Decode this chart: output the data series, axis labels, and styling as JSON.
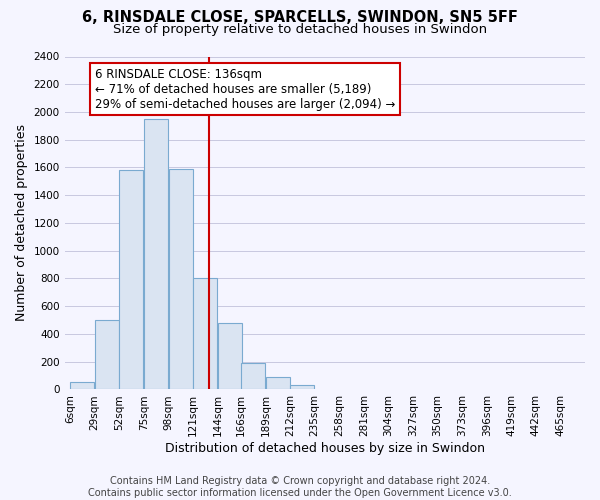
{
  "title": "6, RINSDALE CLOSE, SPARCELLS, SWINDON, SN5 5FF",
  "subtitle": "Size of property relative to detached houses in Swindon",
  "xlabel": "Distribution of detached houses by size in Swindon",
  "ylabel": "Number of detached properties",
  "bar_left_edges": [
    6,
    29,
    52,
    75,
    98,
    121,
    144,
    166,
    189,
    212,
    235,
    258,
    281,
    304,
    327,
    350,
    373,
    396,
    419,
    442
  ],
  "bar_heights": [
    55,
    500,
    1580,
    1950,
    1590,
    800,
    480,
    190,
    90,
    30,
    0,
    0,
    0,
    0,
    0,
    0,
    0,
    0,
    0,
    0
  ],
  "bin_width": 23,
  "bar_color": "#dae4f2",
  "bar_edge_color": "#7aaad0",
  "vline_x": 136,
  "vline_color": "#cc0000",
  "annotation_line1": "6 RINSDALE CLOSE: 136sqm",
  "annotation_line2": "← 71% of detached houses are smaller (5,189)",
  "annotation_line3": "29% of semi-detached houses are larger (2,094) →",
  "tick_labels": [
    "6sqm",
    "29sqm",
    "52sqm",
    "75sqm",
    "98sqm",
    "121sqm",
    "144sqm",
    "166sqm",
    "189sqm",
    "212sqm",
    "235sqm",
    "258sqm",
    "281sqm",
    "304sqm",
    "327sqm",
    "350sqm",
    "373sqm",
    "396sqm",
    "419sqm",
    "442sqm",
    "465sqm"
  ],
  "tick_positions": [
    6,
    29,
    52,
    75,
    98,
    121,
    144,
    166,
    189,
    212,
    235,
    258,
    281,
    304,
    327,
    350,
    373,
    396,
    419,
    442,
    465
  ],
  "ylim": [
    0,
    2400
  ],
  "xlim_min": 1,
  "xlim_max": 488,
  "yticks": [
    0,
    200,
    400,
    600,
    800,
    1000,
    1200,
    1400,
    1600,
    1800,
    2000,
    2200,
    2400
  ],
  "footer_line1": "Contains HM Land Registry data © Crown copyright and database right 2024.",
  "footer_line2": "Contains public sector information licensed under the Open Government Licence v3.0.",
  "title_fontsize": 10.5,
  "subtitle_fontsize": 9.5,
  "axis_label_fontsize": 9,
  "tick_fontsize": 7.5,
  "annotation_fontsize": 8.5,
  "footer_fontsize": 7,
  "bg_color": "#f5f5ff",
  "grid_color": "#c8c8e0"
}
